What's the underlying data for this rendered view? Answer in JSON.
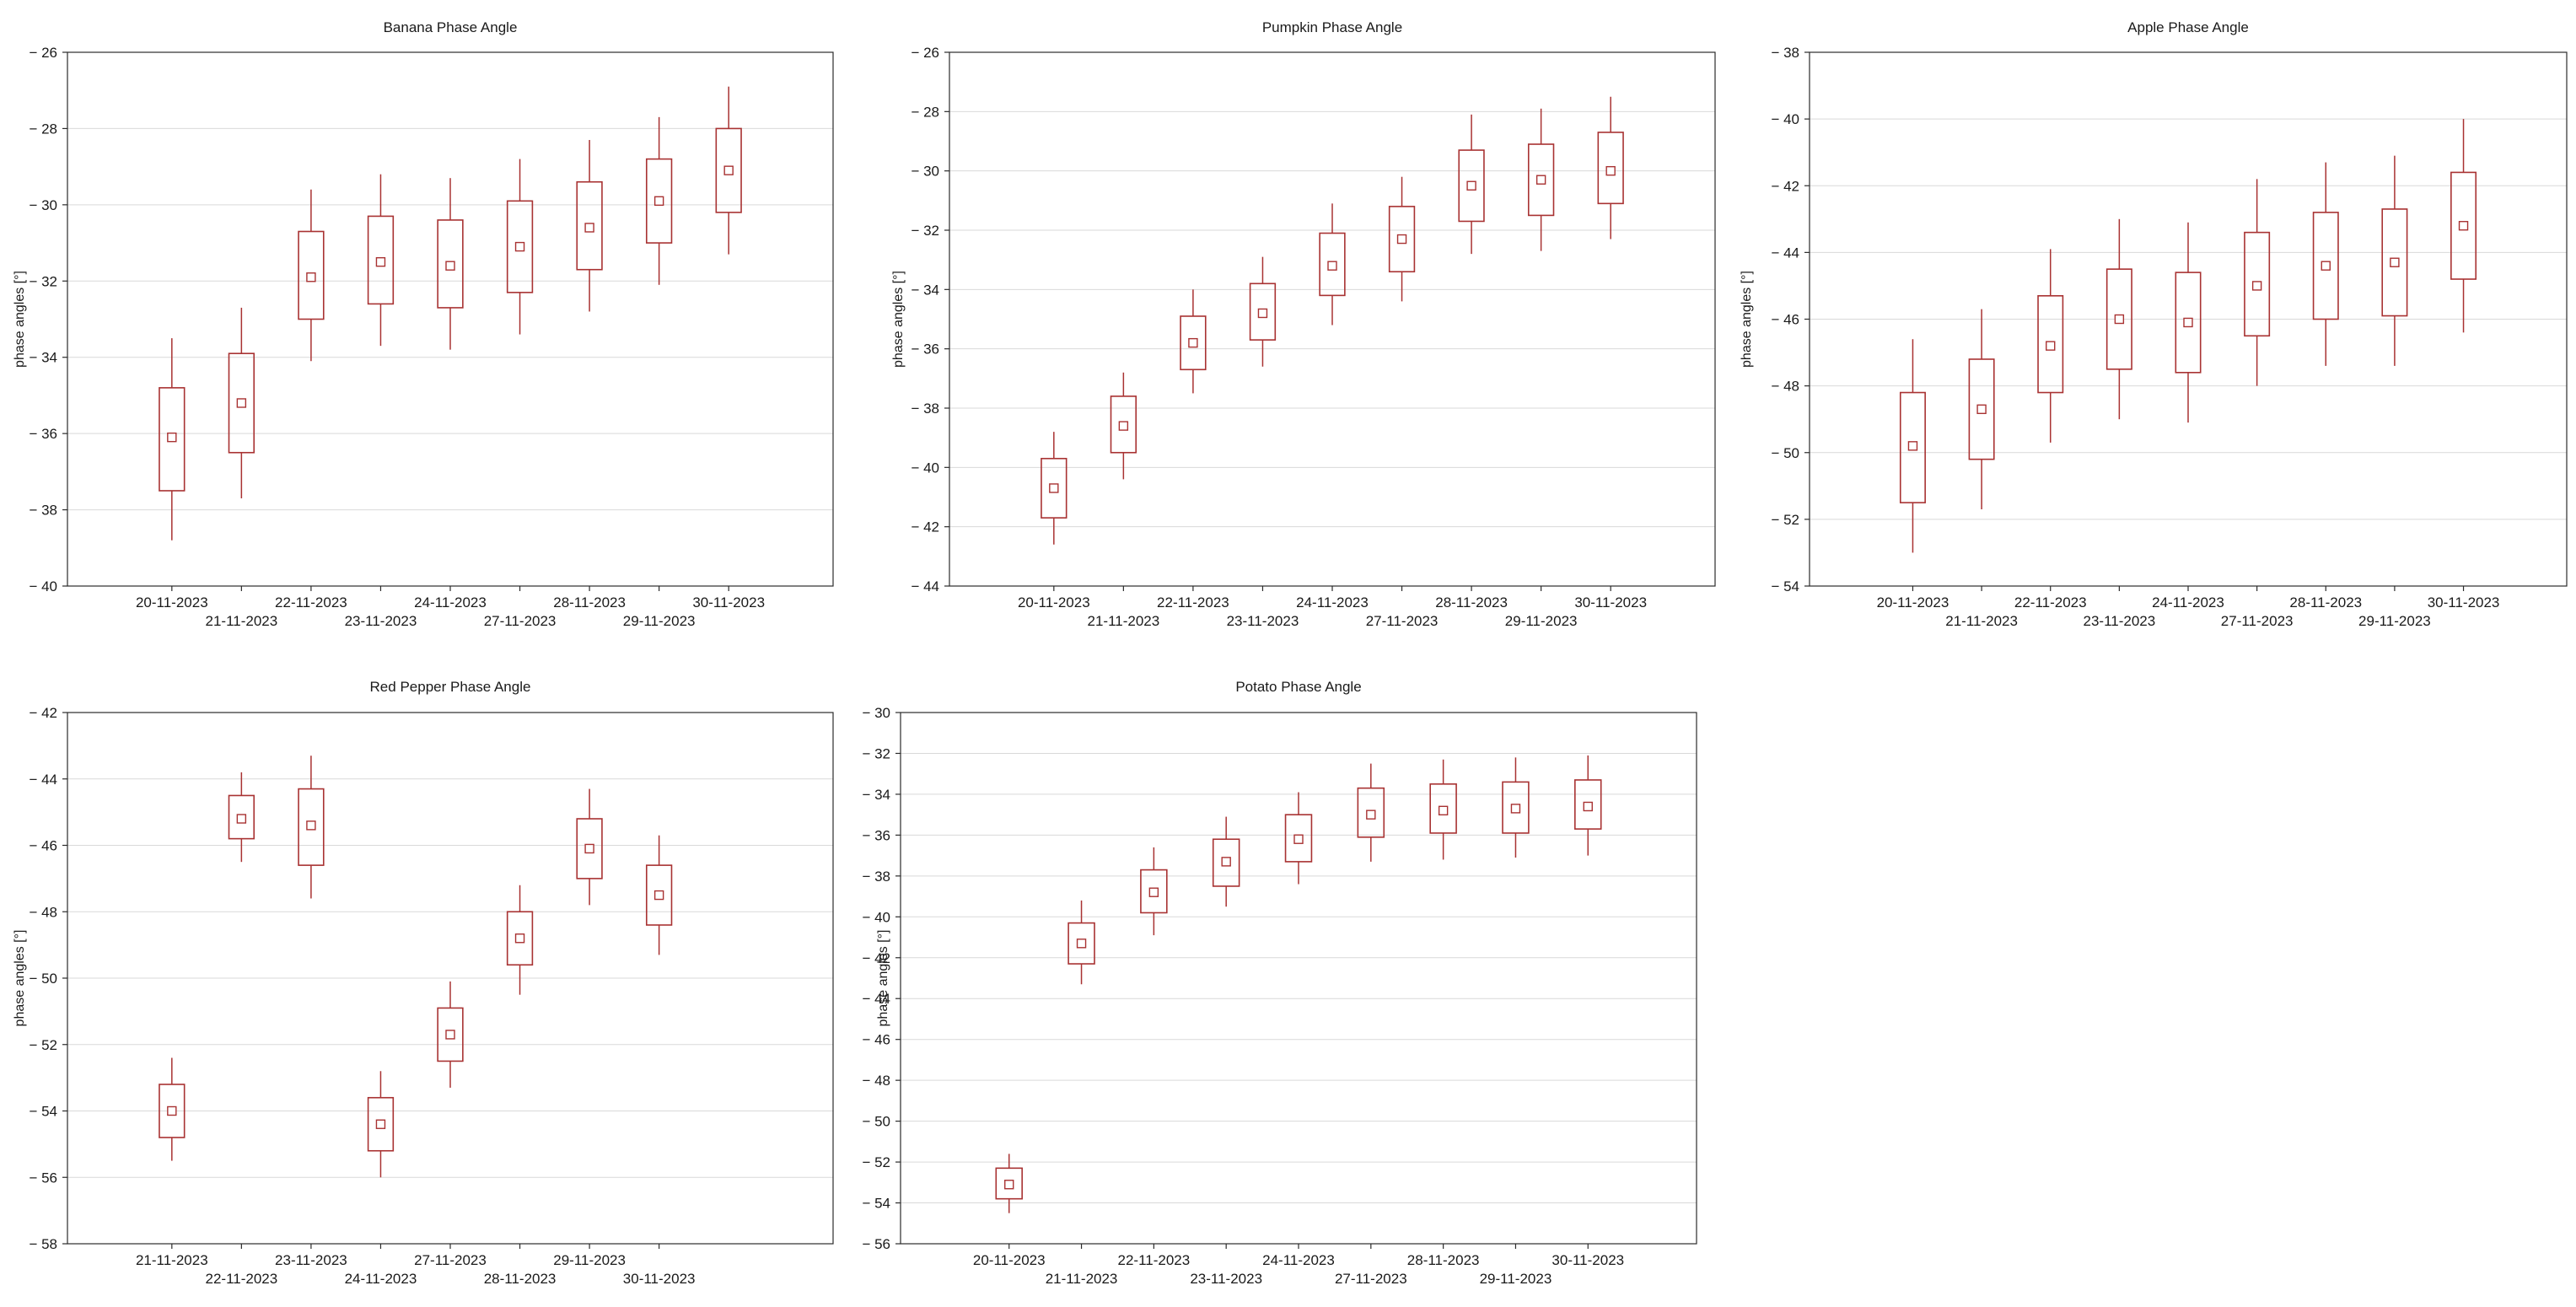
{
  "colors": {
    "box": "#a83232",
    "frame": "#2b2b2b",
    "grid": "#d9d9d9",
    "text": "#1a1a1a"
  },
  "chart_data": [
    {
      "type": "box",
      "title": "Banana Phase Angle",
      "ylabel": "phase angles [°]",
      "ylim": [
        -40,
        -26
      ],
      "yticks": [
        -26,
        -28,
        -30,
        -32,
        -34,
        -36,
        -38,
        -40
      ],
      "grid": true,
      "categories": [
        "20-11-2023",
        "21-11-2023",
        "22-11-2023",
        "23-11-2023",
        "24-11-2023",
        "27-11-2023",
        "28-11-2023",
        "29-11-2023",
        "30-11-2023"
      ],
      "mean": [
        -36.1,
        -35.2,
        -31.9,
        -31.5,
        -31.6,
        -31.1,
        -30.6,
        -29.9,
        -29.1
      ],
      "box_low": [
        -37.5,
        -36.5,
        -33.0,
        -32.6,
        -32.7,
        -32.3,
        -31.7,
        -31.0,
        -30.2
      ],
      "box_high": [
        -34.8,
        -33.9,
        -30.7,
        -30.3,
        -30.4,
        -29.9,
        -29.4,
        -28.8,
        -28.0
      ],
      "whisker_low": [
        -38.8,
        -37.7,
        -34.1,
        -33.7,
        -33.8,
        -33.4,
        -32.8,
        -32.1,
        -31.3
      ],
      "whisker_high": [
        -33.5,
        -32.7,
        -29.6,
        -29.2,
        -29.3,
        -28.8,
        -28.3,
        -27.7,
        -26.9
      ]
    },
    {
      "type": "box",
      "title": "Pumpkin Phase Angle",
      "ylabel": "phase angles [°]",
      "ylim": [
        -44,
        -26
      ],
      "yticks": [
        -26,
        -28,
        -30,
        -32,
        -34,
        -36,
        -38,
        -40,
        -42,
        -44
      ],
      "grid": true,
      "categories": [
        "20-11-2023",
        "21-11-2023",
        "22-11-2023",
        "23-11-2023",
        "24-11-2023",
        "27-11-2023",
        "28-11-2023",
        "29-11-2023",
        "30-11-2023"
      ],
      "mean": [
        -40.7,
        -38.6,
        -35.8,
        -34.8,
        -33.2,
        -32.3,
        -30.5,
        -30.3,
        -30.0
      ],
      "box_low": [
        -41.7,
        -39.5,
        -36.7,
        -35.7,
        -34.2,
        -33.4,
        -31.7,
        -31.5,
        -31.1
      ],
      "box_high": [
        -39.7,
        -37.6,
        -34.9,
        -33.8,
        -32.1,
        -31.2,
        -29.3,
        -29.1,
        -28.7
      ],
      "whisker_low": [
        -42.6,
        -40.4,
        -37.5,
        -36.6,
        -35.2,
        -34.4,
        -32.8,
        -32.7,
        -32.3
      ],
      "whisker_high": [
        -38.8,
        -36.8,
        -34.0,
        -32.9,
        -31.1,
        -30.2,
        -28.1,
        -27.9,
        -27.5
      ]
    },
    {
      "type": "box",
      "title": "Apple Phase Angle",
      "ylabel": "phase angles [°]",
      "ylim": [
        -54,
        -38
      ],
      "yticks": [
        -38,
        -40,
        -42,
        -44,
        -46,
        -48,
        -50,
        -52,
        -54
      ],
      "grid": true,
      "categories": [
        "20-11-2023",
        "21-11-2023",
        "22-11-2023",
        "23-11-2023",
        "24-11-2023",
        "27-11-2023",
        "28-11-2023",
        "29-11-2023",
        "30-11-2023"
      ],
      "mean": [
        -49.8,
        -48.7,
        -46.8,
        -46.0,
        -46.1,
        -45.0,
        -44.4,
        -44.3,
        -43.2
      ],
      "box_low": [
        -51.5,
        -50.2,
        -48.2,
        -47.5,
        -47.6,
        -46.5,
        -46.0,
        -45.9,
        -44.8
      ],
      "box_high": [
        -48.2,
        -47.2,
        -45.3,
        -44.5,
        -44.6,
        -43.4,
        -42.8,
        -42.7,
        -41.6
      ],
      "whisker_low": [
        -53.0,
        -51.7,
        -49.7,
        -49.0,
        -49.1,
        -48.0,
        -47.4,
        -47.4,
        -46.4
      ],
      "whisker_high": [
        -46.6,
        -45.7,
        -43.9,
        -43.0,
        -43.1,
        -41.8,
        -41.3,
        -41.1,
        -40.0
      ]
    },
    {
      "type": "box",
      "title": "Red Pepper Phase Angle",
      "ylabel": "phase angles [°]",
      "ylim": [
        -58,
        -42
      ],
      "yticks": [
        -42,
        -44,
        -46,
        -48,
        -50,
        -52,
        -54,
        -56,
        -58
      ],
      "grid": true,
      "categories": [
        "21-11-2023",
        "22-11-2023",
        "23-11-2023",
        "24-11-2023",
        "27-11-2023",
        "28-11-2023",
        "29-11-2023",
        "30-11-2023"
      ],
      "mean": [
        -54.0,
        -45.2,
        -45.4,
        -54.4,
        -51.7,
        -48.8,
        -46.1,
        -47.5
      ],
      "box_low": [
        -54.8,
        -45.8,
        -46.6,
        -55.2,
        -52.5,
        -49.6,
        -47.0,
        -48.4
      ],
      "box_high": [
        -53.2,
        -44.5,
        -44.3,
        -53.6,
        -50.9,
        -48.0,
        -45.2,
        -46.6
      ],
      "whisker_low": [
        -55.5,
        -46.5,
        -47.6,
        -56.0,
        -53.3,
        -50.5,
        -47.8,
        -49.3
      ],
      "whisker_high": [
        -52.4,
        -43.8,
        -43.3,
        -52.8,
        -50.1,
        -47.2,
        -44.3,
        -45.7
      ]
    },
    {
      "type": "box",
      "title": "Potato Phase Angle",
      "ylabel": "phase angles [°]",
      "ylim": [
        -56,
        -30
      ],
      "yticks": [
        -30,
        -32,
        -34,
        -36,
        -38,
        -40,
        -42,
        -44,
        -46,
        -48,
        -50,
        -52,
        -54,
        -56
      ],
      "grid": true,
      "categories": [
        "20-11-2023",
        "21-11-2023",
        "22-11-2023",
        "23-11-2023",
        "24-11-2023",
        "27-11-2023",
        "28-11-2023",
        "29-11-2023",
        "30-11-2023"
      ],
      "mean": [
        -53.1,
        -41.3,
        -38.8,
        -37.3,
        -36.2,
        -35.0,
        -34.8,
        -34.7,
        -34.6
      ],
      "box_low": [
        -53.8,
        -42.3,
        -39.8,
        -38.5,
        -37.3,
        -36.1,
        -35.9,
        -35.9,
        -35.7
      ],
      "box_high": [
        -52.3,
        -40.3,
        -37.7,
        -36.2,
        -35.0,
        -33.7,
        -33.5,
        -33.4,
        -33.3
      ],
      "whisker_low": [
        -54.5,
        -43.3,
        -40.9,
        -39.5,
        -38.4,
        -37.3,
        -37.2,
        -37.1,
        -37.0
      ],
      "whisker_high": [
        -51.6,
        -39.2,
        -36.6,
        -35.1,
        -33.9,
        -32.5,
        -32.3,
        -32.2,
        -32.1
      ]
    }
  ]
}
